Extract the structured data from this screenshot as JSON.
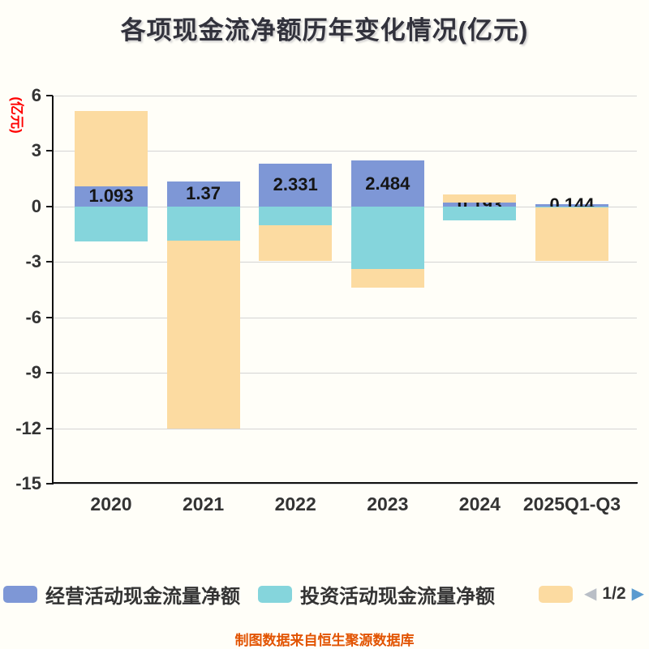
{
  "title": "各项现金流净额历年变化情况(亿元)",
  "y_axis_unit": "(亿元)",
  "footer": "制图数据来自恒生聚源数据库",
  "legend": [
    {
      "label": "经营活动现金流量净额",
      "color": "#7e97d6"
    },
    {
      "label": "投资活动现金流量净额",
      "color": "#85d5dc"
    },
    {
      "label": "",
      "color": "#fcdba1"
    }
  ],
  "pagination": {
    "label": "1/2",
    "prev_icon": "◀",
    "next_icon": "▶"
  },
  "chart_data": {
    "type": "bar",
    "stacked": true,
    "grid": true,
    "legend_position": "bottom",
    "title": "各项现金流净额历年变化情况(亿元)",
    "ylabel": "(亿元)",
    "ylim": [
      -15,
      6
    ],
    "yticks": [
      6,
      3,
      0,
      -3,
      -6,
      -9,
      -12,
      -15
    ],
    "categories": [
      "2020",
      "2021",
      "2022",
      "2023",
      "2024",
      "2025Q1-Q3"
    ],
    "series": [
      {
        "name": "经营活动现金流量净额",
        "color": "#7e97d6",
        "values": [
          1.093,
          1.37,
          2.331,
          2.484,
          0.193,
          0.144
        ],
        "labels": [
          "1.093",
          "1.37",
          "2.331",
          "2.484",
          "0.193",
          "0.144"
        ]
      },
      {
        "name": "投资活动现金流量净额",
        "color": "#85d5dc",
        "values": [
          -1.89,
          -1.85,
          -1.02,
          -3.37,
          -0.75,
          -0.06
        ]
      },
      {
        "name": "",
        "color": "#fcdba1",
        "values": [
          4.08,
          -10.15,
          -1.91,
          -1.0,
          0.45,
          -2.9
        ]
      }
    ]
  }
}
